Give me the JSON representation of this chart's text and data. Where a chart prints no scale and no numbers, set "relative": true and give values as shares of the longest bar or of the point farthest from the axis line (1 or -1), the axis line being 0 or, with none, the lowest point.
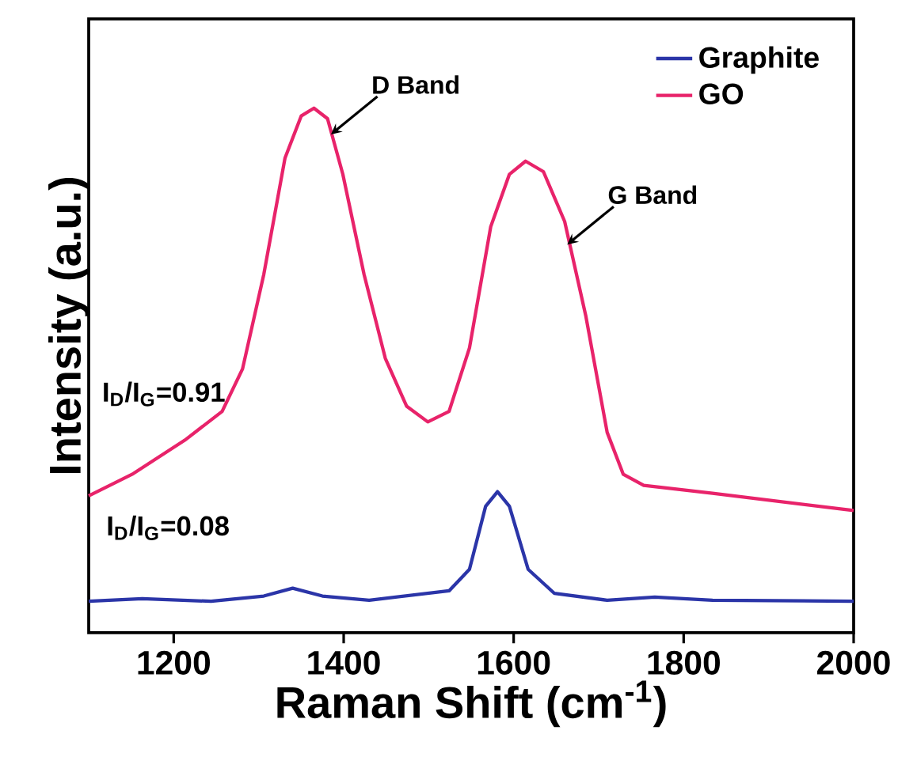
{
  "chart_data": {
    "type": "line",
    "xlabel": "Raman Shift (cm$^{-1}$)",
    "ylabel": "Intensity (a.u.)",
    "xlim": [
      1100,
      2000
    ],
    "xticks": [
      1200,
      1400,
      1600,
      1800,
      2000
    ],
    "relative": true,
    "legend": "top right",
    "grid": false,
    "series": [
      {
        "name": "Graphite",
        "color": "#2b35a8",
        "x": [
          1100,
          1163,
          1244,
          1306,
          1340,
          1375,
          1430,
          1524,
          1548,
          1567,
          1581,
          1595,
          1617,
          1648,
          1710,
          1766,
          1834,
          2000
        ],
        "values": [
          0.06,
          0.065,
          0.06,
          0.07,
          0.085,
          0.07,
          0.062,
          0.08,
          0.121,
          0.241,
          0.269,
          0.241,
          0.121,
          0.075,
          0.062,
          0.068,
          0.062,
          0.06
        ]
      },
      {
        "name": "GO",
        "color": "#e8236a",
        "x": [
          1100,
          1151,
          1213,
          1257,
          1281,
          1306,
          1331,
          1350,
          1365,
          1381,
          1399,
          1424,
          1449,
          1474,
          1499,
          1524,
          1548,
          1573,
          1595,
          1614,
          1635,
          1660,
          1685,
          1710,
          1729,
          1753,
          1834,
          2000
        ],
        "values": [
          0.261,
          0.302,
          0.367,
          0.422,
          0.503,
          0.683,
          0.905,
          0.985,
          1.0,
          0.98,
          0.874,
          0.683,
          0.523,
          0.432,
          0.402,
          0.422,
          0.543,
          0.774,
          0.874,
          0.899,
          0.879,
          0.784,
          0.603,
          0.382,
          0.302,
          0.281,
          0.266,
          0.233
        ]
      }
    ],
    "annotations": [
      {
        "text": "D Band",
        "x": 1385,
        "y": 0.95
      },
      {
        "text": "G Band",
        "x": 1663,
        "y": 0.74
      },
      "I$_{D}$/I$_{G}$=0.91",
      "I$_{D}$/I$_{G}$=0.08"
    ]
  }
}
